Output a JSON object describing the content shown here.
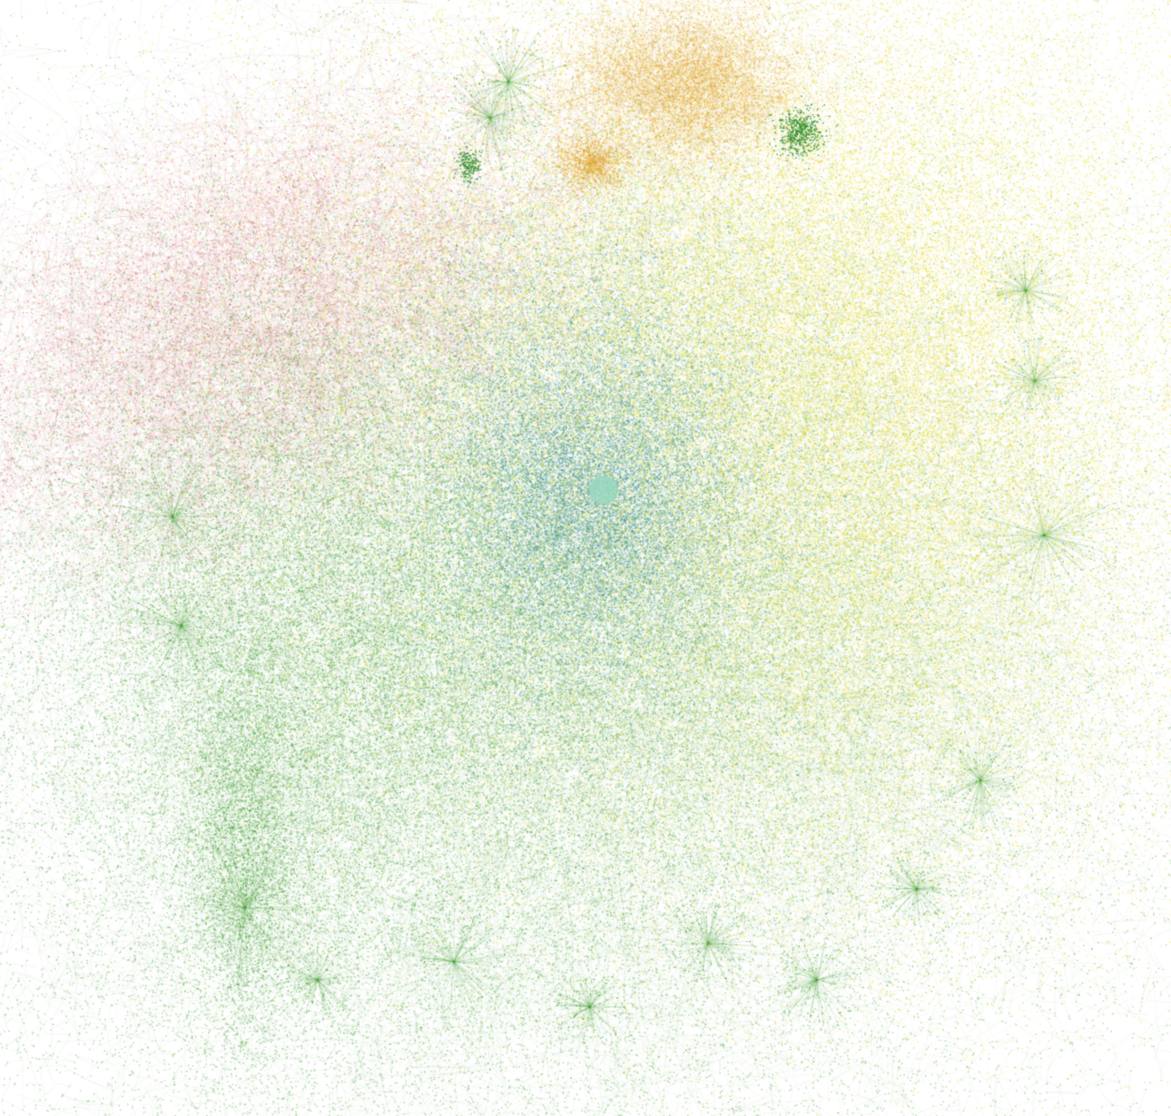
{
  "figure": {
    "kind": "network-graph-visualization",
    "background": "#ffffff",
    "clusters": [
      {
        "name": "red-community",
        "color": "#c9474e"
      },
      {
        "name": "green-community",
        "color": "#3e9e2e"
      },
      {
        "name": "yellow-community",
        "color": "#e8e12a"
      },
      {
        "name": "teal-community",
        "color": "#4a9ea8"
      },
      {
        "name": "orange-community",
        "color": "#e0a634"
      }
    ]
  }
}
